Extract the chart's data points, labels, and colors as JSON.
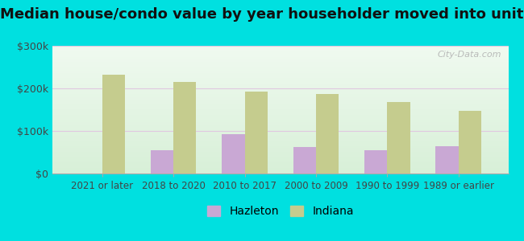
{
  "title": "Median house/condo value by year householder moved into unit",
  "categories": [
    "2021 or later",
    "2018 to 2020",
    "2010 to 2017",
    "2000 to 2009",
    "1990 to 1999",
    "1989 or earlier"
  ],
  "hazleton_values": [
    0,
    55000,
    93000,
    63000,
    55000,
    65000
  ],
  "indiana_values": [
    232000,
    215000,
    193000,
    187000,
    168000,
    148000
  ],
  "hazleton_color": "#c9a8d4",
  "indiana_color": "#c5cc8e",
  "background_color": "#00e0e0",
  "ylim": [
    0,
    300000
  ],
  "yticks": [
    0,
    100000,
    200000,
    300000
  ],
  "ytick_labels": [
    "$0",
    "$100k",
    "$200k",
    "$300k"
  ],
  "legend_labels": [
    "Hazleton",
    "Indiana"
  ],
  "bar_width": 0.32,
  "title_fontsize": 13,
  "watermark": "City-Data.com",
  "grid_color": "#e0c8e0",
  "plot_bg_colors": [
    "#f0faf0",
    "#d8f0d8"
  ]
}
